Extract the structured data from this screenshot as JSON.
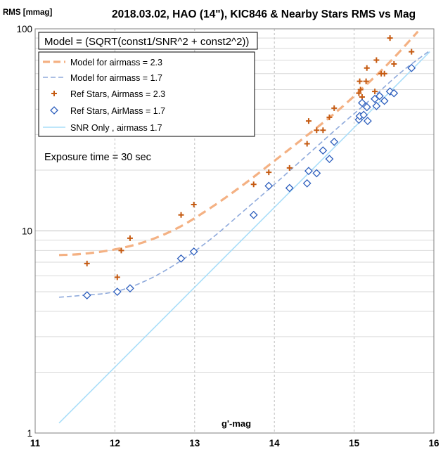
{
  "chart_data": {
    "type": "scatter",
    "title": "2018.03.02, HAO (14\"), KIC846 & Nearby Stars RMS vs Mag",
    "ylabel": "RMS [mmag]",
    "xlabel": "g'-mag",
    "xlim": [
      11,
      16
    ],
    "ylim": [
      1,
      100
    ],
    "yscale": "log",
    "grid": true,
    "x_ticks": [
      "11",
      "12",
      "13",
      "14",
      "15",
      "16"
    ],
    "y_ticks": [
      "1",
      "10",
      "100"
    ],
    "annotations": [
      "Model = (SQRT(const1/SNR^2 + const2^2))",
      "Exposure time = 30 sec"
    ],
    "legend_position": "top-left",
    "series": [
      {
        "name": "Model for airmass = 2.3",
        "kind": "dashed-line",
        "color": "#f4b183",
        "x": [
          11.3,
          11.6,
          12.0,
          12.4,
          12.8,
          13.2,
          13.6,
          14.0,
          14.4,
          14.8,
          15.2,
          15.5,
          15.8
        ],
        "y": [
          7.6,
          7.7,
          8.1,
          8.9,
          10.4,
          13.0,
          16.8,
          22.2,
          29.5,
          39.5,
          55.0,
          72.0,
          97.0
        ]
      },
      {
        "name": "Model for airmass = 1.7",
        "kind": "dashed-line",
        "color": "#8faadc",
        "x": [
          11.3,
          11.6,
          12.0,
          12.4,
          12.8,
          13.2,
          13.6,
          14.0,
          14.4,
          14.8,
          15.2,
          15.6,
          15.95
        ],
        "y": [
          4.7,
          4.8,
          5.0,
          5.7,
          7.0,
          9.1,
          12.4,
          17.0,
          23.5,
          32.5,
          44.5,
          61.5,
          78.0
        ]
      },
      {
        "name": "Ref Stars, Airmass = 2.3",
        "kind": "plus-markers",
        "color": "#c55a11",
        "x": [
          11.65,
          12.03,
          12.08,
          12.19,
          12.83,
          12.99,
          13.74,
          13.93,
          14.19,
          14.41,
          14.43,
          14.53,
          14.61,
          14.69,
          14.75,
          15.06,
          15.07,
          15.08,
          15.1,
          15.15,
          15.16,
          15.26,
          15.28,
          15.34,
          15.38,
          15.45,
          15.5,
          15.72
        ],
        "y": [
          6.9,
          5.9,
          8.0,
          9.2,
          12.0,
          13.5,
          17.0,
          19.5,
          20.5,
          27.0,
          35.0,
          31.5,
          31.5,
          36.5,
          40.5,
          48.0,
          55.0,
          50.0,
          46.0,
          55.0,
          64.0,
          49.0,
          70.0,
          60.0,
          60.0,
          90.0,
          67.0,
          77.0
        ]
      },
      {
        "name": "Ref Stars, AirMass = 1.7",
        "kind": "diamond-markers",
        "color": "#2e5fbd",
        "x": [
          11.65,
          12.03,
          12.19,
          12.83,
          12.99,
          13.74,
          13.93,
          14.19,
          14.41,
          14.43,
          14.53,
          14.61,
          14.69,
          14.75,
          15.06,
          15.07,
          15.1,
          15.12,
          15.16,
          15.17,
          15.26,
          15.28,
          15.32,
          15.38,
          15.45,
          15.5,
          15.72
        ],
        "y": [
          4.8,
          5.0,
          5.2,
          7.3,
          7.9,
          12.0,
          16.7,
          16.3,
          17.2,
          19.8,
          19.3,
          25.0,
          22.7,
          27.6,
          35.5,
          37.0,
          43.0,
          37.5,
          41.0,
          35.0,
          45.0,
          41.5,
          46.5,
          44.0,
          49.0,
          48.0,
          64.0
        ]
      },
      {
        "name": "SNR Only , airmass 1.7",
        "kind": "solid-line",
        "color": "#a9def9",
        "x": [
          11.3,
          15.95
        ],
        "y": [
          1.12,
          77.0
        ]
      }
    ]
  }
}
